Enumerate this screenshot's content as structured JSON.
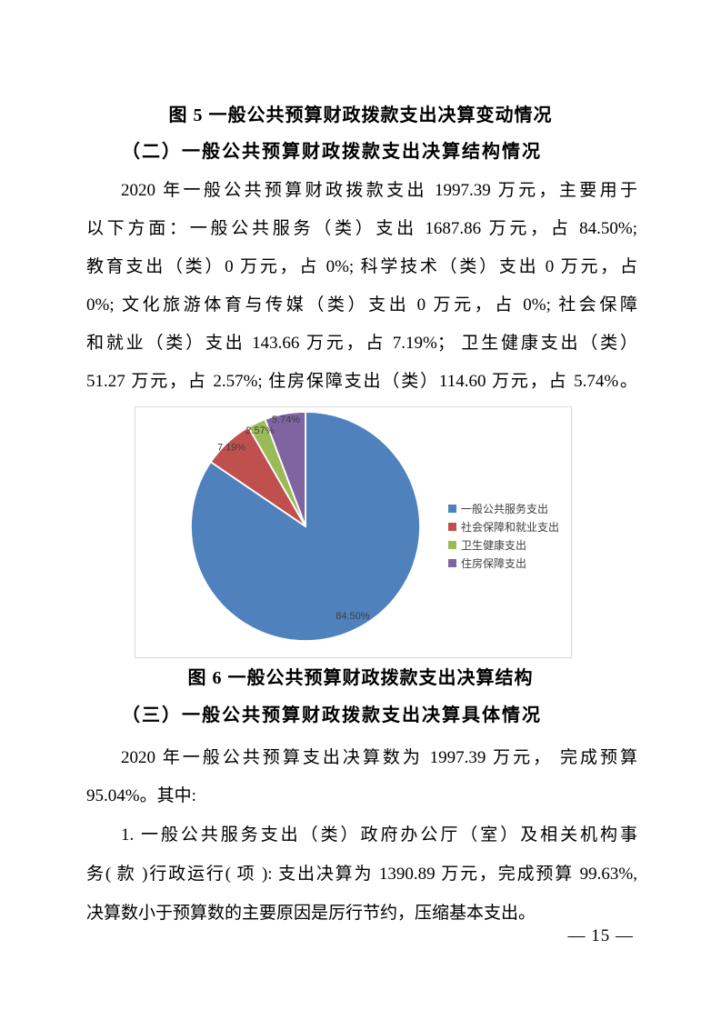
{
  "page": {
    "fig5_caption": "图 5 一般公共预算财政拨款支出决算变动情况",
    "section2_heading": "（二）一般公共预算财政拨款支出决算结构情况",
    "para1": [
      {
        "text": "2020 年一般公共预算财政拨款支出 1997.39 万元，主要用于",
        "indent": true,
        "justify": true
      },
      {
        "text": "以下方面：一般公共服务（类）支出 1687.86 万元，占 84.50%;",
        "indent": false,
        "justify": true
      },
      {
        "text": "教育支出（类）0 万元，占 0%; 科学技术（类）支出 0 万元，占",
        "indent": false,
        "justify": true
      },
      {
        "text": "0%; 文化旅游体育与传媒（类）支出 0 万元，占 0%; 社会保障",
        "indent": false,
        "justify": true
      },
      {
        "text": "和就业（类）支出 143.66 万元，占 7.19%； 卫生健康支出（类）",
        "indent": false,
        "justify": true
      },
      {
        "text": "51.27 万元，占 2.57%; 住房保障支出（类）114.60 万元，占 5.74%。",
        "indent": false,
        "justify": true
      }
    ],
    "fig6_caption": "图 6 一般公共预算财政拨款支出决算结构",
    "section3_heading": "（三）一般公共预算财政拨款支出决算具体情况",
    "para2": [
      {
        "text": "2020 年一般公共预算支出决算数为 1997.39 万元， 完成预算",
        "indent": true,
        "justify": true
      },
      {
        "text": "95.04%。其中:",
        "indent": false,
        "justify": false
      }
    ],
    "para3": [
      {
        "text": "1.  一般公共服务支出（类）政府办公厅（室）及相关机构事",
        "indent": true,
        "justify": true
      },
      {
        "text": "务( 款 )行政运行( 项 ): 支出决算为 1390.89 万元，完成预算 99.63%,",
        "indent": false,
        "justify": true
      },
      {
        "text": "决算数小于预算数的主要原因是厉行节约，压缩基本支出。",
        "indent": false,
        "justify": false
      }
    ],
    "page_number": "— 15 —"
  },
  "chart_data": {
    "type": "pie",
    "title": "",
    "categories": [
      "一般公共服务支出",
      "社会保障和就业支出",
      "卫生健康支出",
      "住房保障支出"
    ],
    "values": [
      84.5,
      7.19,
      2.57,
      5.74
    ],
    "labels": [
      "84.50%",
      "7.19%",
      "2.57%",
      "5.74%"
    ],
    "colors": [
      "#4F81BD",
      "#C0504D",
      "#9BBB59",
      "#8064A2"
    ],
    "legend_position": "right",
    "start_angle_deg": 0,
    "direction": "clockwise",
    "label_radius_factors": [
      0.88,
      0.95,
      0.93,
      0.95
    ]
  }
}
